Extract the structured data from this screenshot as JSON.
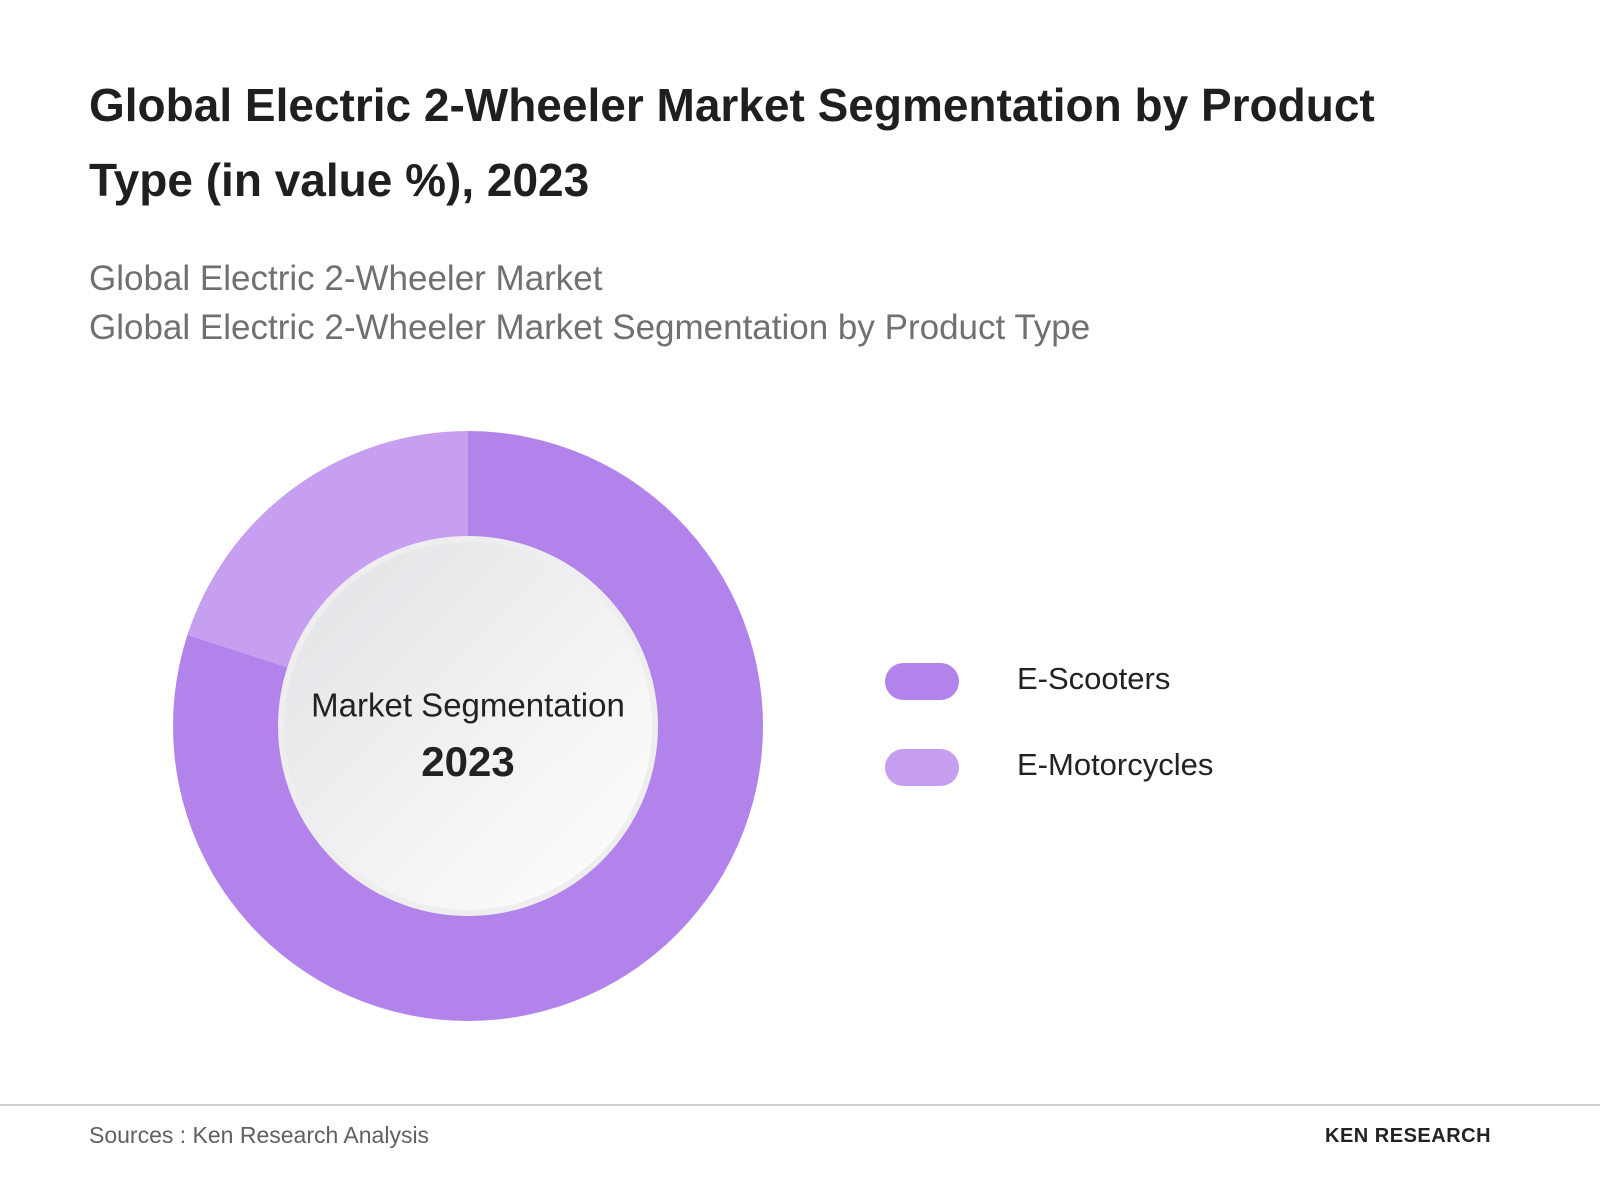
{
  "chart_data": {
    "type": "donut",
    "title": "Global Electric 2-Wheeler Market Segmentation by Product Type (in value %), 2023",
    "subtitle": [
      "Global Electric 2-Wheeler Market",
      "Global Electric 2-Wheeler Market Segmentation by Product Type"
    ],
    "center_label": "Market Segmentation",
    "center_value": "2023",
    "categories": [
      "E-Scooters",
      "E-Motorcycles"
    ],
    "values": [
      80,
      20
    ],
    "colors": [
      "#b383ec",
      "#c79ff0"
    ]
  },
  "footer": {
    "source": "Sources : Ken Research Analysis",
    "brand": "KEN RESEARCH"
  }
}
